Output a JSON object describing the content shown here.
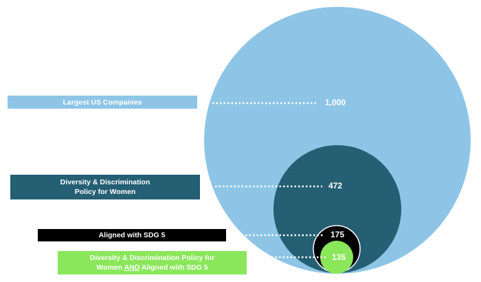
{
  "colors": {
    "largest": "#8ec5e6",
    "policy": "#255f73",
    "sdg": "#000000",
    "both": "#8ae65a",
    "text": "#ffffff"
  },
  "labels": {
    "companies": "Largest US Companies",
    "policy_line1": "Diversity & Discrimination",
    "policy_line2": "Policy for Women",
    "sdg": "Aligned with SDG 5",
    "both_line1": "Diversity & Discrimination Policy for",
    "both_line2_pre": "Women ",
    "both_line2_and": "AND",
    "both_line2_post": " Aligned with SDG 5"
  },
  "values": {
    "companies": "1,000",
    "policy": "472",
    "sdg": "175",
    "both": "135"
  }
}
